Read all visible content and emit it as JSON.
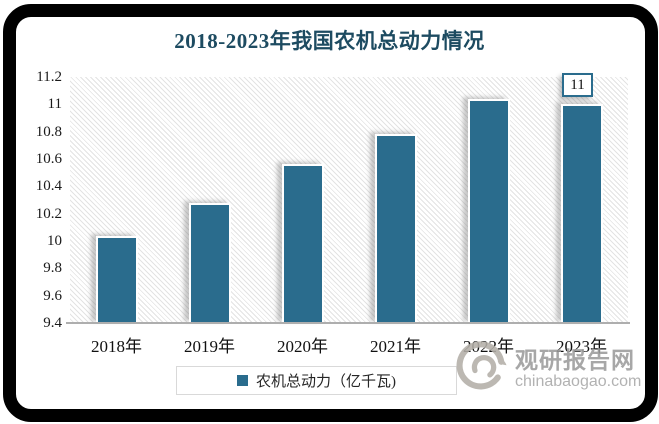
{
  "chart_data": {
    "type": "bar",
    "title": "2018-2023年我国农机总动力情况",
    "categories": [
      "2018年",
      "2019年",
      "2020年",
      "2021年",
      "2022年",
      "2023年"
    ],
    "values": [
      10.04,
      10.28,
      10.56,
      10.78,
      11.04,
      11.0
    ],
    "series_name": "农机总动力（亿千瓦)",
    "ylabel": "",
    "xlabel": "",
    "ylim": [
      9.4,
      11.2
    ],
    "ytick_step": 0.2,
    "yticks": [
      "11.2",
      "11",
      "10.8",
      "10.6",
      "10.4",
      "10.2",
      "10",
      "9.8",
      "9.6",
      "9.4"
    ],
    "grid": false,
    "plot_background": "diagonal-hatch",
    "legend_position": "bottom",
    "bar_color": "#2a6c8d",
    "title_color": "#1d4b61",
    "annotation": {
      "category": "2023年",
      "index": 5,
      "text": "11"
    }
  },
  "legend": {
    "label": "农机总动力（亿千瓦)"
  },
  "watermark": {
    "name": "观研报告网",
    "domain": "chinabaogao.com",
    "logo": "swirl-icon",
    "color": "#9c9c9c"
  }
}
